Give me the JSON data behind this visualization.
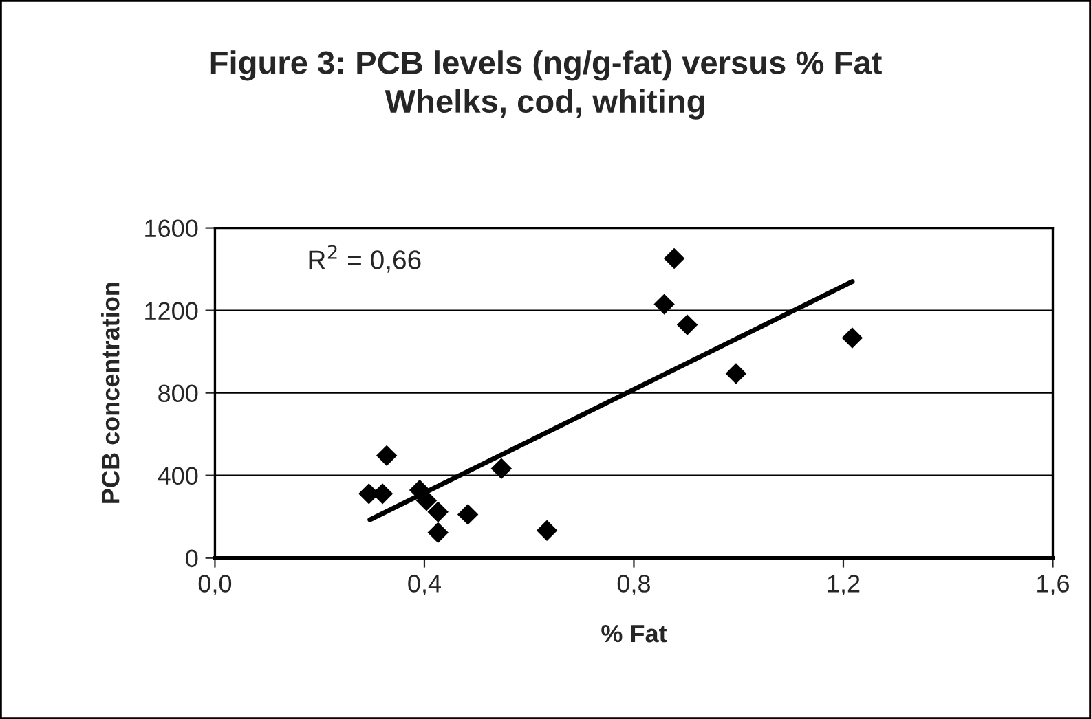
{
  "chart_data": {
    "type": "scatter",
    "title": "Figure 3: PCB levels (ng/g-fat) versus % Fat\nWhelks, cod, whiting",
    "xlabel": "% Fat",
    "ylabel": "PCB concentration",
    "series": [
      {
        "color": "#000000",
        "marker": "diamond",
        "x": [
          0.294,
          0.32,
          0.328,
          0.391,
          0.404,
          0.426,
          0.426,
          0.483,
          0.547,
          0.634,
          0.877,
          0.858,
          0.902,
          0.995,
          1.217
        ],
        "values": [
          311,
          311,
          496,
          329,
          278,
          223,
          123,
          211,
          433,
          133,
          1452,
          1230,
          1130,
          894,
          1067
        ]
      },
      {
        "type": "line",
        "color": "#000000",
        "marker": "none",
        "x": [
          0.296,
          1.217
        ],
        "values": [
          185,
          1340
        ]
      }
    ],
    "annotations": [
      "R$^{2}$ = 0,66"
    ],
    "xlim": [
      0,
      1.6
    ],
    "xticks": [
      {
        "value": 0,
        "label": "0,0"
      },
      {
        "value": 0.4,
        "label": "0,4"
      },
      {
        "value": 0.8,
        "label": "0,8"
      },
      {
        "value": 1.2,
        "label": "1,2"
      },
      {
        "value": 1.6,
        "label": "1,6"
      }
    ],
    "ylim": [
      0,
      1600
    ],
    "yticks": [
      0,
      400,
      800,
      1200,
      1600
    ],
    "grid": "y"
  }
}
